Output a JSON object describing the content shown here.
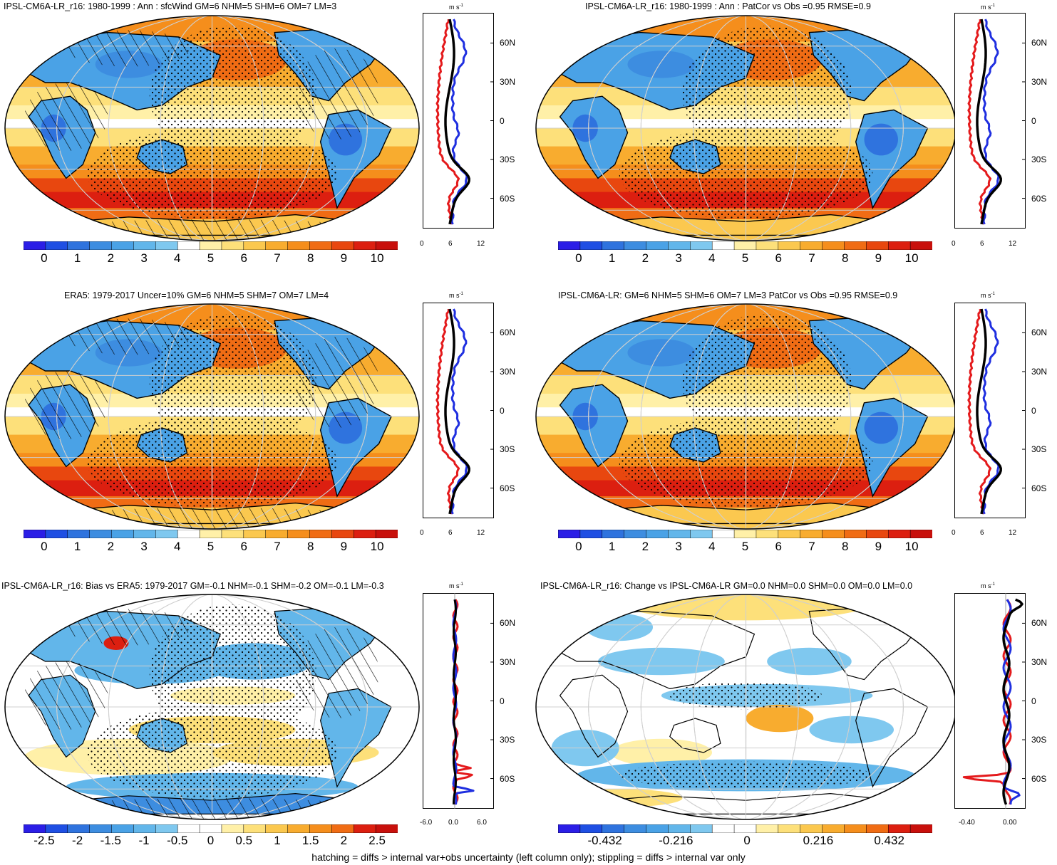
{
  "panels": [
    {
      "id": "p1",
      "title": "IPSL-CM6A-LR_r16: 1980-1999 : Ann : sfcWind GM=6 NHM=5 SHM=6 OM=7 LM=3",
      "colorbar_labels": [
        "0",
        "1",
        "2",
        "3",
        "4",
        "5",
        "6",
        "7",
        "8",
        "9",
        "10"
      ],
      "profile_x_ticks": [
        "0",
        "6",
        "12"
      ],
      "profile_y_ticks": [
        "60N",
        "30N",
        "0",
        "30S",
        "60S"
      ],
      "profile_unit": "m s",
      "profile_unit_sup": "-1",
      "field": "abs",
      "hatch": true,
      "stipple": true
    },
    {
      "id": "p2",
      "title": "IPSL-CM6A-LR_r16: 1980-1999 : Ann : PatCor vs Obs =0.95 RMSE=0.9",
      "colorbar_labels": [
        "0",
        "1",
        "2",
        "3",
        "4",
        "5",
        "6",
        "7",
        "8",
        "9",
        "10"
      ],
      "profile_x_ticks": [
        "0",
        "6",
        "12"
      ],
      "profile_y_ticks": [
        "60N",
        "30N",
        "0",
        "30S",
        "60S"
      ],
      "profile_unit": "m s",
      "profile_unit_sup": "-1",
      "field": "abs",
      "hatch": false,
      "stipple": true
    },
    {
      "id": "p3",
      "title": "ERA5: 1979-2017 Uncer=10% GM=6 NHM=5 SHM=7 OM=7 LM=4",
      "colorbar_labels": [
        "0",
        "1",
        "2",
        "3",
        "4",
        "5",
        "6",
        "7",
        "8",
        "9",
        "10"
      ],
      "profile_x_ticks": [
        "0",
        "6",
        "12"
      ],
      "profile_y_ticks": [
        "60N",
        "30N",
        "0",
        "30S",
        "60S"
      ],
      "profile_unit": "m s",
      "profile_unit_sup": "-1",
      "field": "abs",
      "hatch": true,
      "stipple": true
    },
    {
      "id": "p4",
      "title": "IPSL-CM6A-LR: GM=6 NHM=5 SHM=6 OM=7 LM=3 PatCor vs Obs =0.95 RMSE=0.9",
      "colorbar_labels": [
        "0",
        "1",
        "2",
        "3",
        "4",
        "5",
        "6",
        "7",
        "8",
        "9",
        "10"
      ],
      "profile_x_ticks": [
        "0",
        "6",
        "12"
      ],
      "profile_y_ticks": [
        "60N",
        "30N",
        "0",
        "30S",
        "60S"
      ],
      "profile_unit": "m s",
      "profile_unit_sup": "-1",
      "field": "abs",
      "hatch": false,
      "stipple": true
    },
    {
      "id": "p5",
      "title": "IPSL-CM6A-LR_r16: Bias vs ERA5: 1979-2017 GM=-0.1 NHM=-0.1 SHM=-0.2 OM=-0.1 LM=-0.3",
      "colorbar_labels": [
        "-2.5",
        "-2",
        "-1.5",
        "-1",
        "-0.5",
        "0",
        "0.5",
        "1",
        "1.5",
        "2",
        "2.5"
      ],
      "profile_x_ticks": [
        "-6.0",
        "0.0",
        "6.0"
      ],
      "profile_y_ticks": [
        "60N",
        "30N",
        "0",
        "30S",
        "60S"
      ],
      "profile_unit": "m s",
      "profile_unit_sup": "-1",
      "field": "bias",
      "hatch": true,
      "stipple": true
    },
    {
      "id": "p6",
      "title": "IPSL-CM6A-LR_r16: Change vs IPSL-CM6A-LR GM=0.0 NHM=0.0 SHM=0.0 OM=0.0 LM=0.0",
      "colorbar_labels": [
        "-0.432",
        "-0.216",
        "0",
        "0.216",
        "0.432"
      ],
      "profile_x_ticks": [
        "-0.40",
        "0.00"
      ],
      "profile_y_ticks": [
        "60N",
        "30N",
        "0",
        "30S",
        "60S"
      ],
      "profile_unit": "m s",
      "profile_unit_sup": "-1",
      "field": "change",
      "hatch": false,
      "stipple": true
    }
  ],
  "footnote": "hatching = diffs > internal var+obs uncertainty (left column only); stippling = diffs > internal var only",
  "colors": {
    "abs_scale": [
      "#2b1ee6",
      "#1f4fe3",
      "#2f73de",
      "#3d8de0",
      "#4aa2e6",
      "#62b6ea",
      "#7fc8ef",
      "#ffffff",
      "#fff0a8",
      "#fde07a",
      "#fbc84f",
      "#f8ac2f",
      "#f58e1c",
      "#f06c14",
      "#e8470f",
      "#dc1f10",
      "#c8100c"
    ],
    "div_scale": [
      "#2b1ee6",
      "#1f4fe3",
      "#2f73de",
      "#3d8de0",
      "#4aa2e6",
      "#62b6ea",
      "#7fc8ef",
      "#ffffff",
      "#ffffff",
      "#fff0a8",
      "#fde07a",
      "#fbc84f",
      "#f8ac2f",
      "#f58e1c",
      "#f06c14",
      "#dc1f10",
      "#c8100c"
    ],
    "profile_model": "#e41a1c",
    "profile_obs": "#1f2fe0",
    "profile_mean": "#000000"
  }
}
